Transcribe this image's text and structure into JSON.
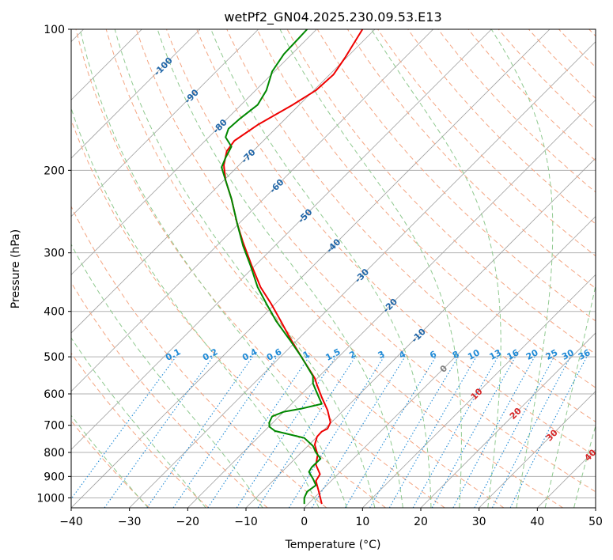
{
  "chart_data": {
    "type": "line",
    "title": "wetPf2_GN04.2025.230.09.53.E13",
    "xlabel": "Temperature (°C)",
    "ylabel": "Pressure (hPa)",
    "xlim": [
      -40,
      50
    ],
    "ylim": [
      1050,
      100
    ],
    "y_scale": "log",
    "grid": true,
    "x_ticks": [
      -40,
      -30,
      -20,
      -10,
      0,
      10,
      20,
      30,
      40,
      50
    ],
    "y_ticks": [
      100,
      200,
      300,
      400,
      500,
      600,
      700,
      800,
      900,
      1000
    ],
    "x_tick_labels": [
      "−40",
      "−30",
      "−20",
      "−10",
      "0",
      "10",
      "20",
      "30",
      "40",
      "50"
    ],
    "y_tick_labels": [
      "100",
      "200",
      "300",
      "400",
      "500",
      "600",
      "700",
      "800",
      "900",
      "1000"
    ],
    "series": [
      {
        "color": "#ee0000",
        "points": [
          [
            3,
            1030
          ],
          [
            2.5,
            970
          ],
          [
            2,
            920
          ],
          [
            2.7,
            890
          ],
          [
            2,
            850
          ],
          [
            2.3,
            810
          ],
          [
            1.8,
            770
          ],
          [
            2.2,
            740
          ],
          [
            3,
            722
          ],
          [
            4,
            712
          ],
          [
            4.5,
            690
          ],
          [
            4,
            650
          ],
          [
            3,
            610
          ],
          [
            2.2,
            575
          ],
          [
            1.8,
            555
          ],
          [
            -0.5,
            500
          ],
          [
            -2.5,
            455
          ],
          [
            -4,
            420
          ],
          [
            -5.7,
            385
          ],
          [
            -7.5,
            355
          ],
          [
            -9,
            320
          ],
          [
            -10.5,
            285
          ],
          [
            -11.5,
            260
          ],
          [
            -12.5,
            230
          ],
          [
            -13.5,
            210
          ],
          [
            -13.8,
            195
          ],
          [
            -13.3,
            182
          ],
          [
            -12,
            173
          ],
          [
            -8,
            160
          ],
          [
            -2,
            145
          ],
          [
            2,
            135
          ],
          [
            5,
            125
          ],
          [
            7,
            115
          ],
          [
            10,
            100
          ]
        ]
      },
      {
        "color": "#008800",
        "points": [
          [
            0,
            1030
          ],
          [
            0,
            1000
          ],
          [
            0.5,
            970
          ],
          [
            2,
            940
          ],
          [
            1.5,
            910
          ],
          [
            0.8,
            880
          ],
          [
            1.3,
            860
          ],
          [
            2.8,
            825
          ],
          [
            2,
            800
          ],
          [
            1.5,
            775
          ],
          [
            0,
            745
          ],
          [
            -5,
            720
          ],
          [
            -6,
            705
          ],
          [
            -6,
            690
          ],
          [
            -5.5,
            670
          ],
          [
            -3.5,
            655
          ],
          [
            -0.5,
            645
          ],
          [
            3,
            630
          ],
          [
            2,
            590
          ],
          [
            1.5,
            570
          ],
          [
            1.5,
            550
          ],
          [
            -0.5,
            500
          ],
          [
            -2.5,
            460
          ],
          [
            -4.8,
            420
          ],
          [
            -6.5,
            385
          ],
          [
            -8,
            355
          ],
          [
            -9.2,
            320
          ],
          [
            -10.5,
            290
          ],
          [
            -11.5,
            260
          ],
          [
            -12.5,
            230
          ],
          [
            -13.5,
            210
          ],
          [
            -14.2,
            197
          ],
          [
            -13.5,
            188
          ],
          [
            -12.5,
            178
          ],
          [
            -13.5,
            170
          ],
          [
            -13,
            163
          ],
          [
            -11,
            155
          ],
          [
            -8,
            145
          ],
          [
            -6.5,
            135
          ],
          [
            -5.5,
            123
          ],
          [
            -3.5,
            113
          ],
          [
            0.5,
            100
          ]
        ]
      }
    ],
    "dry_adiabat_labels": [
      "-100",
      "-90",
      "-80",
      "-70",
      "-60",
      "-50",
      "-40",
      "-30",
      "-20",
      "-10"
    ],
    "mixing_ratio_labels": [
      "0.1",
      "0.2",
      "0.4",
      "0.6",
      "1",
      "1.5",
      "2",
      "3",
      "4",
      "6",
      "8",
      "10",
      "13",
      "16",
      "20",
      "25",
      "30",
      "36"
    ],
    "moist_adiabat_labels": [
      "0",
      "10",
      "20",
      "30",
      "40"
    ],
    "colors": {
      "temperature": "#ee0000",
      "dewpoint": "#008800",
      "isotherm": "#a0a0a0",
      "dry_adiabat": "#f4a582",
      "moist_adiabat": "#8fc98f",
      "mixing_ratio": "#1f8ad6",
      "dry_label": "#2066a8",
      "moist_label": "#d62728"
    }
  }
}
